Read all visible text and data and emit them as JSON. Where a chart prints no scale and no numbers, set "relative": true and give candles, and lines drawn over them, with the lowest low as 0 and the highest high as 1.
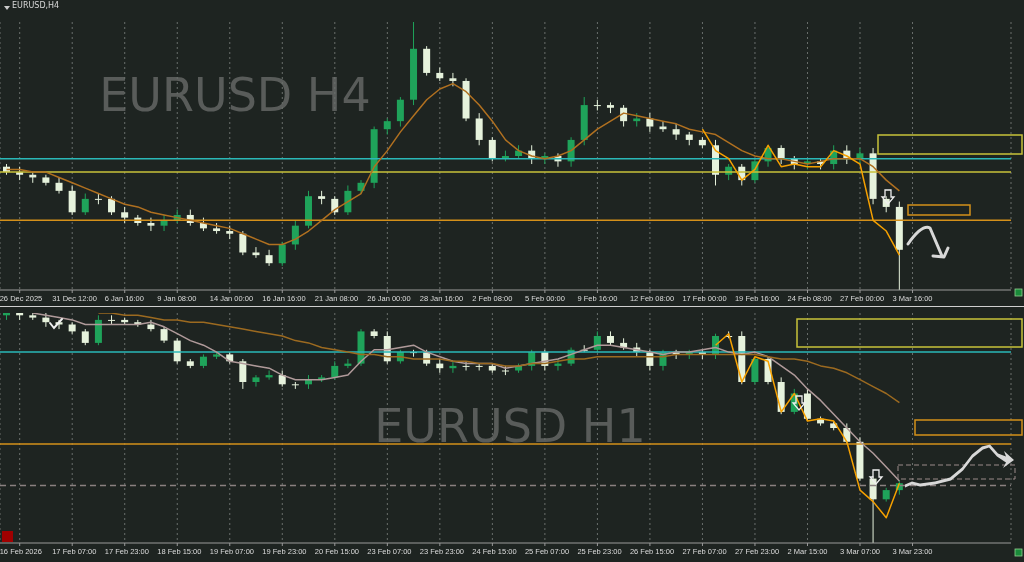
{
  "chart_data": [
    {
      "type": "candlestick",
      "relative": true,
      "title": "EURUSD,H4",
      "annotations": [
        "EURUSD H4"
      ],
      "grid": "x",
      "legend": false,
      "categories": [
        null,
        "26 Dec 2025",
        null,
        null,
        null,
        "31 Dec 12:00",
        null,
        null,
        null,
        "6 Jan 16:00",
        null,
        null,
        null,
        "9 Jan 08:00",
        null,
        null,
        null,
        "14 Jan 00:00",
        null,
        null,
        null,
        "16 Jan 16:00",
        null,
        null,
        null,
        "21 Jan 08:00",
        null,
        null,
        null,
        "26 Jan 00:00",
        null,
        null,
        null,
        "28 Jan 16:00",
        null,
        null,
        null,
        "2 Feb 08:00",
        null,
        null,
        null,
        "5 Feb 00:00",
        null,
        null,
        null,
        "9 Feb 16:00",
        null,
        null,
        null,
        "12 Feb 08:00",
        null,
        null,
        null,
        "17 Feb 00:00",
        null,
        null,
        null,
        "19 Feb 16:00",
        null,
        null,
        null,
        "24 Feb 08:00",
        null,
        null,
        null,
        "27 Feb 00:00",
        null,
        null,
        null,
        "3 Mar 16:00",
        null,
        null,
        null,
        null,
        null,
        null,
        null
      ],
      "ohlc": [
        [
          0.46,
          0.47,
          0.43,
          0.44
        ],
        [
          0.44,
          0.46,
          0.41,
          0.43
        ],
        [
          0.43,
          0.44,
          0.4,
          0.42
        ],
        [
          0.42,
          0.43,
          0.39,
          0.4
        ],
        [
          0.4,
          0.42,
          0.36,
          0.37
        ],
        [
          0.37,
          0.39,
          0.28,
          0.29
        ],
        [
          0.29,
          0.36,
          0.28,
          0.34
        ],
        [
          0.34,
          0.36,
          0.32,
          0.34
        ],
        [
          0.34,
          0.35,
          0.28,
          0.29
        ],
        [
          0.29,
          0.31,
          0.25,
          0.27
        ],
        [
          0.27,
          0.28,
          0.24,
          0.25
        ],
        [
          0.25,
          0.27,
          0.22,
          0.24
        ],
        [
          0.24,
          0.28,
          0.22,
          0.26
        ],
        [
          0.26,
          0.3,
          0.25,
          0.28
        ],
        [
          0.28,
          0.3,
          0.24,
          0.25
        ],
        [
          0.25,
          0.27,
          0.22,
          0.23
        ],
        [
          0.23,
          0.25,
          0.21,
          0.22
        ],
        [
          0.22,
          0.24,
          0.19,
          0.21
        ],
        [
          0.21,
          0.22,
          0.13,
          0.14
        ],
        [
          0.14,
          0.16,
          0.12,
          0.13
        ],
        [
          0.13,
          0.15,
          0.09,
          0.1
        ],
        [
          0.1,
          0.18,
          0.09,
          0.17
        ],
        [
          0.17,
          0.26,
          0.15,
          0.24
        ],
        [
          0.24,
          0.37,
          0.23,
          0.35
        ],
        [
          0.35,
          0.37,
          0.32,
          0.34
        ],
        [
          0.34,
          0.35,
          0.28,
          0.29
        ],
        [
          0.29,
          0.39,
          0.28,
          0.37
        ],
        [
          0.37,
          0.41,
          0.36,
          0.4
        ],
        [
          0.4,
          0.61,
          0.38,
          0.6
        ],
        [
          0.6,
          0.64,
          0.58,
          0.63
        ],
        [
          0.63,
          0.72,
          0.61,
          0.71
        ],
        [
          0.71,
          1.0,
          0.69,
          0.9
        ],
        [
          0.9,
          0.91,
          0.8,
          0.81
        ],
        [
          0.81,
          0.83,
          0.78,
          0.79
        ],
        [
          0.79,
          0.81,
          0.76,
          0.78
        ],
        [
          0.78,
          0.79,
          0.63,
          0.64
        ],
        [
          0.64,
          0.66,
          0.54,
          0.56
        ],
        [
          0.56,
          0.57,
          0.48,
          0.49
        ],
        [
          0.49,
          0.52,
          0.48,
          0.5
        ],
        [
          0.5,
          0.54,
          0.49,
          0.52
        ],
        [
          0.52,
          0.54,
          0.47,
          0.49
        ],
        [
          0.49,
          0.51,
          0.47,
          0.5
        ],
        [
          0.5,
          0.51,
          0.46,
          0.48
        ],
        [
          0.48,
          0.57,
          0.46,
          0.56
        ],
        [
          0.56,
          0.72,
          0.54,
          0.69
        ],
        [
          0.69,
          0.71,
          0.67,
          0.69
        ],
        [
          0.69,
          0.7,
          0.66,
          0.68
        ],
        [
          0.68,
          0.69,
          0.61,
          0.63
        ],
        [
          0.63,
          0.66,
          0.61,
          0.64
        ],
        [
          0.64,
          0.66,
          0.59,
          0.61
        ],
        [
          0.61,
          0.63,
          0.59,
          0.6
        ],
        [
          0.6,
          0.62,
          0.56,
          0.58
        ],
        [
          0.58,
          0.59,
          0.54,
          0.56
        ],
        [
          0.56,
          0.57,
          0.53,
          0.54
        ],
        [
          0.54,
          0.56,
          0.39,
          0.43
        ],
        [
          0.43,
          0.47,
          0.41,
          0.46
        ],
        [
          0.46,
          0.47,
          0.39,
          0.41
        ],
        [
          0.41,
          0.49,
          0.4,
          0.48
        ],
        [
          0.48,
          0.54,
          0.46,
          0.53
        ],
        [
          0.53,
          0.54,
          0.47,
          0.49
        ],
        [
          0.49,
          0.5,
          0.45,
          0.47
        ],
        [
          0.47,
          0.49,
          0.45,
          0.48
        ],
        [
          0.48,
          0.49,
          0.45,
          0.47
        ],
        [
          0.47,
          0.54,
          0.45,
          0.52
        ],
        [
          0.52,
          0.54,
          0.47,
          0.49
        ],
        [
          0.49,
          0.53,
          0.47,
          0.51
        ],
        [
          0.51,
          0.53,
          0.32,
          0.34
        ],
        [
          0.34,
          0.35,
          0.29,
          0.31
        ],
        [
          0.31,
          0.33,
          0.0,
          0.15
        ],
        null,
        null,
        null,
        null,
        null,
        null,
        null,
        null
      ],
      "colors": [
        "#e6f2dc",
        "#e6f2dc",
        "#e6f2dc",
        "#e6f2dc",
        "#e6f2dc",
        "#e6f2dc",
        "#1fa35a",
        "#e6f2dc",
        "#e6f2dc",
        "#e6f2dc",
        "#e6f2dc",
        "#e6f2dc",
        "#1fa35a",
        "#1fa35a",
        "#e6f2dc",
        "#e6f2dc",
        "#e6f2dc",
        "#e6f2dc",
        "#e6f2dc",
        "#e6f2dc",
        "#e6f2dc",
        "#1fa35a",
        "#1fa35a",
        "#1fa35a",
        "#e6f2dc",
        "#e6f2dc",
        "#1fa35a",
        "#1fa35a",
        "#1fa35a",
        "#1fa35a",
        "#1fa35a",
        "#1fa35a",
        "#e6f2dc",
        "#e6f2dc",
        "#e6f2dc",
        "#e6f2dc",
        "#e6f2dc",
        "#e6f2dc",
        "#1fa35a",
        "#1fa35a",
        "#e6f2dc",
        "#1fa35a",
        "#e6f2dc",
        "#1fa35a",
        "#1fa35a",
        "#e6f2dc",
        "#e6f2dc",
        "#e6f2dc",
        "#1fa35a",
        "#e6f2dc",
        "#e6f2dc",
        "#e6f2dc",
        "#e6f2dc",
        "#e6f2dc",
        "#e6f2dc",
        "#1fa35a",
        "#e6f2dc",
        "#1fa35a",
        "#1fa35a",
        "#e6f2dc",
        "#e6f2dc",
        "#1fa35a",
        "#e6f2dc",
        "#1fa35a",
        "#e6f2dc",
        "#1fa35a",
        "#e6f2dc",
        "#e6f2dc",
        "#e6f2dc",
        null,
        null,
        null,
        null,
        null,
        null,
        null,
        null
      ],
      "series": [
        {
          "type": "line",
          "color": "#b07020",
          "values": [
            0.45,
            0.45,
            0.44,
            0.44,
            0.42,
            0.4,
            0.38,
            0.36,
            0.34,
            0.32,
            0.31,
            0.29,
            0.28,
            0.27,
            0.26,
            0.25,
            0.24,
            0.23,
            0.21,
            0.19,
            0.17,
            0.17,
            0.19,
            0.22,
            0.26,
            0.3,
            0.33,
            0.36,
            0.46,
            0.52,
            0.59,
            0.65,
            0.71,
            0.75,
            0.77,
            0.74,
            0.69,
            0.63,
            0.56,
            0.52,
            0.5,
            0.49,
            0.5,
            0.52,
            0.56,
            0.6,
            0.63,
            0.66,
            0.65,
            0.64,
            0.63,
            0.62,
            0.6,
            0.59,
            0.58,
            0.55,
            0.52,
            0.5,
            0.49,
            0.49,
            0.48,
            0.47,
            0.48,
            0.49,
            0.49,
            0.49,
            0.46,
            0.41,
            0.37,
            null,
            null,
            null,
            null,
            null,
            null,
            null,
            null
          ]
        },
        {
          "type": "line",
          "color": "#f5a000",
          "values": [
            null,
            null,
            null,
            null,
            null,
            null,
            null,
            null,
            null,
            null,
            null,
            null,
            null,
            null,
            null,
            null,
            null,
            null,
            null,
            null,
            null,
            null,
            null,
            null,
            null,
            null,
            null,
            null,
            null,
            null,
            null,
            null,
            null,
            null,
            null,
            null,
            null,
            null,
            null,
            null,
            null,
            null,
            null,
            null,
            null,
            null,
            null,
            null,
            null,
            null,
            null,
            null,
            null,
            0.6,
            0.52,
            0.49,
            0.41,
            0.45,
            0.54,
            0.46,
            0.47,
            0.46,
            0.46,
            0.52,
            0.5,
            0.47,
            0.26,
            0.22,
            0.13,
            null,
            null,
            null,
            null,
            null,
            null,
            null,
            null
          ]
        }
      ],
      "ref_lines": [
        {
          "axis": "y",
          "value": 0.49,
          "color": "#2ab8b8"
        },
        {
          "axis": "y",
          "value": 0.44,
          "color": "#c8c23a"
        },
        {
          "axis": "y",
          "value": 0.26,
          "color": "#d4901a"
        }
      ]
    },
    {
      "type": "candlestick",
      "relative": true,
      "annotations": [
        "EURUSD H1"
      ],
      "grid": "x",
      "legend": false,
      "categories": [
        null,
        "16 Feb 2026",
        null,
        null,
        null,
        "17 Feb 07:00",
        null,
        null,
        null,
        "17 Feb 23:00",
        null,
        null,
        null,
        "18 Feb 15:00",
        null,
        null,
        null,
        "19 Feb 07:00",
        null,
        null,
        null,
        "19 Feb 23:00",
        null,
        null,
        null,
        "20 Feb 15:00",
        null,
        null,
        null,
        "23 Feb 07:00",
        null,
        null,
        null,
        "23 Feb 23:00",
        null,
        null,
        null,
        "24 Feb 15:00",
        null,
        null,
        null,
        "25 Feb 07:00",
        null,
        null,
        null,
        "25 Feb 23:00",
        null,
        null,
        null,
        "26 Feb 15:00",
        null,
        null,
        null,
        "27 Feb 07:00",
        null,
        null,
        null,
        "27 Feb 23:00",
        null,
        null,
        null,
        "2 Mar 15:00",
        null,
        null,
        null,
        "3 Mar 07:00",
        null,
        null,
        null,
        "3 Mar 23:00",
        null,
        null,
        null,
        null,
        null,
        null,
        null
      ],
      "ohlc": [
        [
          0.99,
          1.0,
          0.97,
          1.0
        ],
        [
          1.0,
          1.0,
          0.97,
          0.99
        ],
        [
          0.99,
          1.0,
          0.97,
          0.98
        ],
        [
          0.98,
          1.0,
          0.94,
          0.96
        ],
        [
          0.96,
          0.97,
          0.93,
          0.95
        ],
        [
          0.95,
          0.96,
          0.91,
          0.92
        ],
        [
          0.92,
          0.93,
          0.86,
          0.87
        ],
        [
          0.87,
          0.99,
          0.86,
          0.97
        ],
        [
          0.97,
          0.99,
          0.95,
          0.97
        ],
        [
          0.97,
          0.98,
          0.95,
          0.96
        ],
        [
          0.96,
          0.97,
          0.94,
          0.95
        ],
        [
          0.95,
          0.97,
          0.92,
          0.93
        ],
        [
          0.93,
          0.94,
          0.87,
          0.88
        ],
        [
          0.88,
          0.89,
          0.78,
          0.79
        ],
        [
          0.79,
          0.8,
          0.76,
          0.77
        ],
        [
          0.77,
          0.82,
          0.76,
          0.81
        ],
        [
          0.81,
          0.83,
          0.8,
          0.82
        ],
        [
          0.82,
          0.83,
          0.78,
          0.79
        ],
        [
          0.79,
          0.8,
          0.67,
          0.7
        ],
        [
          0.7,
          0.73,
          0.68,
          0.72
        ],
        [
          0.72,
          0.75,
          0.71,
          0.73
        ],
        [
          0.73,
          0.75,
          0.68,
          0.69
        ],
        [
          0.69,
          0.7,
          0.67,
          0.69
        ],
        [
          0.69,
          0.73,
          0.67,
          0.71
        ],
        [
          0.71,
          0.73,
          0.7,
          0.72
        ],
        [
          0.72,
          0.79,
          0.71,
          0.77
        ],
        [
          0.77,
          0.8,
          0.76,
          0.78
        ],
        [
          0.78,
          0.93,
          0.77,
          0.92
        ],
        [
          0.92,
          0.93,
          0.89,
          0.9
        ],
        [
          0.9,
          0.92,
          0.78,
          0.79
        ],
        [
          0.79,
          0.84,
          0.78,
          0.83
        ],
        [
          0.83,
          0.84,
          0.81,
          0.83
        ],
        [
          0.83,
          0.84,
          0.77,
          0.78
        ],
        [
          0.78,
          0.8,
          0.74,
          0.76
        ],
        [
          0.76,
          0.79,
          0.74,
          0.77
        ],
        [
          0.77,
          0.79,
          0.75,
          0.77
        ],
        [
          0.77,
          0.78,
          0.75,
          0.77
        ],
        [
          0.77,
          0.78,
          0.74,
          0.75
        ],
        [
          0.75,
          0.77,
          0.73,
          0.75
        ],
        [
          0.75,
          0.78,
          0.74,
          0.77
        ],
        [
          0.77,
          0.84,
          0.75,
          0.83
        ],
        [
          0.83,
          0.84,
          0.75,
          0.77
        ],
        [
          0.77,
          0.8,
          0.75,
          0.78
        ],
        [
          0.78,
          0.85,
          0.77,
          0.84
        ],
        [
          0.84,
          0.86,
          0.83,
          0.84
        ],
        [
          0.84,
          0.92,
          0.83,
          0.9
        ],
        [
          0.9,
          0.92,
          0.86,
          0.87
        ],
        [
          0.87,
          0.89,
          0.84,
          0.85
        ],
        [
          0.85,
          0.87,
          0.81,
          0.83
        ],
        [
          0.83,
          0.84,
          0.75,
          0.77
        ],
        [
          0.77,
          0.84,
          0.75,
          0.83
        ],
        [
          0.83,
          0.84,
          0.8,
          0.82
        ],
        [
          0.82,
          0.84,
          0.8,
          0.83
        ],
        [
          0.83,
          0.84,
          0.8,
          0.82
        ],
        [
          0.82,
          0.91,
          0.8,
          0.9
        ],
        [
          0.9,
          0.92,
          0.89,
          0.9
        ],
        [
          0.9,
          0.92,
          0.69,
          0.7
        ],
        [
          0.7,
          0.81,
          0.69,
          0.8
        ],
        [
          0.8,
          0.81,
          0.69,
          0.7
        ],
        [
          0.7,
          0.72,
          0.56,
          0.57
        ],
        [
          0.57,
          0.67,
          0.56,
          0.65
        ],
        [
          0.65,
          0.67,
          0.53,
          0.54
        ],
        [
          0.54,
          0.55,
          0.51,
          0.52
        ],
        [
          0.52,
          0.53,
          0.49,
          0.5
        ],
        [
          0.5,
          0.52,
          0.43,
          0.44
        ],
        [
          0.44,
          0.46,
          0.27,
          0.28
        ],
        [
          0.28,
          0.29,
          0.0,
          0.19
        ],
        [
          0.19,
          0.24,
          0.18,
          0.23
        ],
        [
          0.23,
          0.27,
          0.21,
          0.26
        ],
        null,
        null,
        null,
        null,
        null,
        null,
        null,
        null
      ],
      "colors": [
        "#1fa35a",
        "#e6f2dc",
        "#e6f2dc",
        "#e6f2dc",
        "#e6f2dc",
        "#e6f2dc",
        "#e6f2dc",
        "#1fa35a",
        "#e6f2dc",
        "#e6f2dc",
        "#e6f2dc",
        "#e6f2dc",
        "#e6f2dc",
        "#e6f2dc",
        "#e6f2dc",
        "#1fa35a",
        "#1fa35a",
        "#e6f2dc",
        "#e6f2dc",
        "#1fa35a",
        "#1fa35a",
        "#e6f2dc",
        "#e6f2dc",
        "#1fa35a",
        "#1fa35a",
        "#1fa35a",
        "#1fa35a",
        "#1fa35a",
        "#e6f2dc",
        "#e6f2dc",
        "#1fa35a",
        "#e6f2dc",
        "#e6f2dc",
        "#e6f2dc",
        "#1fa35a",
        "#e6f2dc",
        "#e6f2dc",
        "#e6f2dc",
        "#e6f2dc",
        "#1fa35a",
        "#1fa35a",
        "#e6f2dc",
        "#1fa35a",
        "#1fa35a",
        "#e6f2dc",
        "#1fa35a",
        "#e6f2dc",
        "#e6f2dc",
        "#e6f2dc",
        "#e6f2dc",
        "#1fa35a",
        "#e6f2dc",
        "#1fa35a",
        "#e6f2dc",
        "#1fa35a",
        "#e6f2dc",
        "#e6f2dc",
        "#1fa35a",
        "#e6f2dc",
        "#e6f2dc",
        "#1fa35a",
        "#e6f2dc",
        "#e6f2dc",
        "#e6f2dc",
        "#e6f2dc",
        "#e6f2dc",
        "#e6f2dc",
        "#1fa35a",
        "#1fa35a",
        null,
        null,
        null,
        null,
        null,
        null,
        null,
        null
      ],
      "series": [
        {
          "type": "line",
          "color": "#b09a9a",
          "values": [
            null,
            null,
            1.0,
            0.99,
            0.98,
            0.97,
            0.95,
            0.95,
            0.95,
            0.95,
            0.95,
            0.96,
            0.94,
            0.91,
            0.88,
            0.86,
            0.83,
            0.79,
            0.78,
            0.77,
            0.76,
            0.73,
            0.71,
            0.71,
            0.71,
            0.72,
            0.73,
            0.79,
            0.84,
            0.84,
            0.85,
            0.86,
            0.83,
            0.81,
            0.79,
            0.78,
            0.78,
            0.78,
            0.76,
            0.77,
            0.78,
            0.79,
            0.8,
            0.82,
            0.84,
            0.86,
            0.86,
            0.85,
            0.84,
            0.83,
            0.82,
            0.83,
            0.83,
            0.84,
            0.85,
            0.83,
            0.82,
            0.83,
            0.81,
            0.77,
            0.73,
            0.67,
            0.62,
            0.56,
            0.5,
            0.44,
            0.39,
            0.33,
            0.27,
            null,
            null,
            null,
            null,
            null,
            null,
            null,
            null
          ]
        },
        {
          "type": "line",
          "color": "#9c6a20",
          "values": [
            null,
            null,
            null,
            null,
            null,
            null,
            null,
            1.0,
            1.0,
            0.99,
            0.99,
            0.98,
            0.97,
            0.97,
            0.96,
            0.96,
            0.95,
            0.94,
            0.93,
            0.92,
            0.91,
            0.9,
            0.88,
            0.87,
            0.85,
            0.84,
            0.83,
            0.82,
            0.82,
            0.81,
            0.81,
            0.8,
            0.8,
            0.8,
            0.79,
            0.79,
            0.78,
            0.78,
            0.77,
            0.77,
            0.78,
            0.78,
            0.79,
            0.8,
            0.8,
            0.81,
            0.81,
            0.81,
            0.81,
            0.81,
            0.81,
            0.82,
            0.82,
            0.82,
            0.82,
            0.82,
            0.82,
            0.82,
            0.81,
            0.8,
            0.8,
            0.79,
            0.77,
            0.76,
            0.74,
            0.71,
            0.68,
            0.65,
            0.61,
            null,
            null,
            null,
            null,
            null,
            null,
            null,
            null
          ]
        },
        {
          "type": "line",
          "color": "#f5a000",
          "values": [
            null,
            null,
            null,
            null,
            null,
            null,
            null,
            null,
            null,
            null,
            null,
            null,
            null,
            null,
            null,
            null,
            null,
            null,
            null,
            null,
            null,
            null,
            null,
            null,
            null,
            null,
            null,
            null,
            null,
            null,
            null,
            null,
            null,
            null,
            null,
            null,
            null,
            null,
            null,
            null,
            null,
            null,
            null,
            null,
            null,
            null,
            null,
            null,
            null,
            null,
            null,
            null,
            null,
            null,
            0.86,
            0.91,
            0.7,
            0.81,
            0.79,
            0.57,
            0.65,
            0.53,
            0.54,
            0.53,
            0.44,
            0.23,
            0.18,
            0.11,
            0.26,
            null,
            null,
            null,
            null,
            null,
            null,
            null,
            null
          ]
        }
      ],
      "ref_lines": [
        {
          "axis": "y",
          "value": 0.83,
          "color": "#2ab8b8"
        },
        {
          "axis": "y",
          "value": 0.43,
          "color": "#d4901a"
        },
        {
          "axis": "y",
          "value": 0.25,
          "color": "#8a8080",
          "line_style": "dashed"
        }
      ]
    }
  ]
}
